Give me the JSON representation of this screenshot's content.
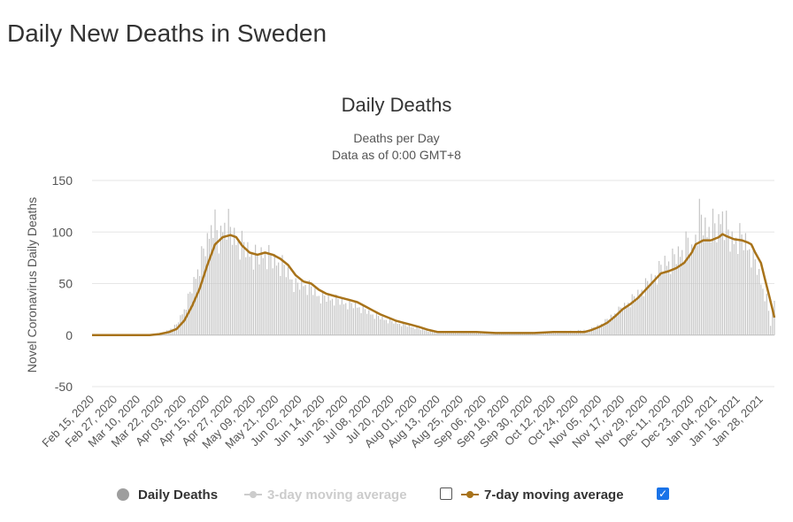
{
  "page": {
    "title": "Daily New Deaths in Sweden"
  },
  "chart_data": {
    "type": "bar",
    "title": "Daily Deaths",
    "subtitle_lines": [
      "Deaths per Day",
      "Data as of 0:00 GMT+8"
    ],
    "ylabel": "Novel Coronavirus Daily Deaths",
    "ylim": [
      -50,
      150
    ],
    "yticks": [
      150,
      100,
      50,
      0,
      -50
    ],
    "x_tick_labels": [
      "Feb 15, 2020",
      "Feb 27, 2020",
      "Mar 10, 2020",
      "Mar 22, 2020",
      "Apr 03, 2020",
      "Apr 15, 2020",
      "Apr 27, 2020",
      "May 09, 2020",
      "May 21, 2020",
      "Jun 02, 2020",
      "Jun 14, 2020",
      "Jun 26, 2020",
      "Jul 08, 2020",
      "Jul 20, 2020",
      "Aug 01, 2020",
      "Aug 13, 2020",
      "Aug 25, 2020",
      "Sep 06, 2020",
      "Sep 18, 2020",
      "Sep 30, 2020",
      "Oct 12, 2020",
      "Oct 24, 2020",
      "Nov 05, 2020",
      "Nov 17, 2020",
      "Nov 29, 2020",
      "Dec 11, 2020",
      "Dec 23, 2020",
      "Jan 04, 2021",
      "Jan 16, 2021",
      "Jan 28, 2021"
    ],
    "x_start": "Feb 15, 2020",
    "days": 356,
    "series": [
      {
        "name": "Daily Deaths",
        "style": "bars",
        "color": "#c4c4c4",
        "points": [
          [
            0,
            0
          ],
          [
            27,
            0
          ],
          [
            33,
            1
          ],
          [
            36,
            2
          ],
          [
            40,
            5
          ],
          [
            44,
            10
          ],
          [
            48,
            25
          ],
          [
            52,
            45
          ],
          [
            56,
            70
          ],
          [
            60,
            90
          ],
          [
            63,
            115
          ],
          [
            66,
            88
          ],
          [
            68,
            105
          ],
          [
            70,
            113
          ],
          [
            72,
            100
          ],
          [
            75,
            92
          ],
          [
            78,
            88
          ],
          [
            82,
            80
          ],
          [
            86,
            75
          ],
          [
            90,
            80
          ],
          [
            94,
            72
          ],
          [
            98,
            70
          ],
          [
            102,
            60
          ],
          [
            106,
            48
          ],
          [
            110,
            50
          ],
          [
            114,
            45
          ],
          [
            118,
            38
          ],
          [
            122,
            36
          ],
          [
            126,
            35
          ],
          [
            130,
            32
          ],
          [
            134,
            30
          ],
          [
            138,
            28
          ],
          [
            142,
            24
          ],
          [
            146,
            20
          ],
          [
            150,
            17
          ],
          [
            154,
            14
          ],
          [
            158,
            12
          ],
          [
            162,
            10
          ],
          [
            166,
            8
          ],
          [
            170,
            6
          ],
          [
            175,
            4
          ],
          [
            180,
            3
          ],
          [
            190,
            3
          ],
          [
            200,
            2
          ],
          [
            220,
            2
          ],
          [
            240,
            3
          ],
          [
            250,
            4
          ],
          [
            258,
            5
          ],
          [
            262,
            8
          ],
          [
            266,
            12
          ],
          [
            270,
            18
          ],
          [
            274,
            24
          ],
          [
            278,
            30
          ],
          [
            282,
            36
          ],
          [
            286,
            44
          ],
          [
            290,
            52
          ],
          [
            294,
            60
          ],
          [
            298,
            70
          ],
          [
            302,
            73
          ],
          [
            306,
            80
          ],
          [
            310,
            90
          ],
          [
            312,
            80
          ],
          [
            316,
            115
          ],
          [
            320,
            100
          ],
          [
            322,
            110
          ],
          [
            325,
            100
          ],
          [
            328,
            120
          ],
          [
            332,
            90
          ],
          [
            336,
            96
          ],
          [
            340,
            90
          ],
          [
            343,
            80
          ],
          [
            346,
            65
          ],
          [
            349,
            45
          ],
          [
            351,
            35
          ],
          [
            353,
            10
          ],
          [
            355,
            35
          ]
        ]
      },
      {
        "name": "3-day moving average",
        "style": "hidden",
        "color": "#cccccc",
        "points": []
      },
      {
        "name": "7-day moving average",
        "style": "line",
        "color": "#a8731a",
        "points": [
          [
            0,
            0
          ],
          [
            30,
            0
          ],
          [
            35,
            1
          ],
          [
            40,
            3
          ],
          [
            44,
            6
          ],
          [
            48,
            14
          ],
          [
            52,
            28
          ],
          [
            56,
            45
          ],
          [
            60,
            68
          ],
          [
            64,
            88
          ],
          [
            68,
            95
          ],
          [
            72,
            97
          ],
          [
            75,
            95
          ],
          [
            78,
            87
          ],
          [
            82,
            80
          ],
          [
            86,
            78
          ],
          [
            90,
            80
          ],
          [
            94,
            78
          ],
          [
            98,
            74
          ],
          [
            102,
            68
          ],
          [
            106,
            58
          ],
          [
            110,
            52
          ],
          [
            114,
            50
          ],
          [
            118,
            44
          ],
          [
            122,
            40
          ],
          [
            126,
            38
          ],
          [
            130,
            36
          ],
          [
            134,
            34
          ],
          [
            138,
            32
          ],
          [
            142,
            28
          ],
          [
            146,
            24
          ],
          [
            150,
            20
          ],
          [
            154,
            17
          ],
          [
            158,
            14
          ],
          [
            162,
            12
          ],
          [
            166,
            10
          ],
          [
            170,
            8
          ],
          [
            175,
            5
          ],
          [
            180,
            3
          ],
          [
            190,
            3
          ],
          [
            200,
            3
          ],
          [
            210,
            2
          ],
          [
            220,
            2
          ],
          [
            230,
            2
          ],
          [
            240,
            3
          ],
          [
            250,
            3
          ],
          [
            256,
            3
          ],
          [
            260,
            5
          ],
          [
            264,
            8
          ],
          [
            268,
            12
          ],
          [
            272,
            18
          ],
          [
            276,
            25
          ],
          [
            280,
            30
          ],
          [
            284,
            36
          ],
          [
            288,
            44
          ],
          [
            292,
            52
          ],
          [
            296,
            60
          ],
          [
            300,
            62
          ],
          [
            304,
            65
          ],
          [
            308,
            70
          ],
          [
            312,
            80
          ],
          [
            314,
            88
          ],
          [
            318,
            92
          ],
          [
            322,
            92
          ],
          [
            326,
            95
          ],
          [
            328,
            98
          ],
          [
            330,
            96
          ],
          [
            334,
            93
          ],
          [
            338,
            92
          ],
          [
            341,
            90
          ],
          [
            343,
            88
          ],
          [
            345,
            80
          ],
          [
            348,
            70
          ],
          [
            350,
            55
          ],
          [
            352,
            40
          ],
          [
            354,
            25
          ],
          [
            355,
            17
          ]
        ]
      }
    ]
  },
  "legend": {
    "items": [
      {
        "label": "Daily Deaths",
        "marker": "dot",
        "active": true,
        "color": "#9e9e9e"
      },
      {
        "label": "3-day moving average",
        "marker": "line",
        "active": false,
        "color": "#cccccc"
      },
      {
        "label": "7-day moving average",
        "marker": "line",
        "active": true,
        "color": "#a8731a"
      }
    ],
    "check_3day": false,
    "check_7day": true
  }
}
